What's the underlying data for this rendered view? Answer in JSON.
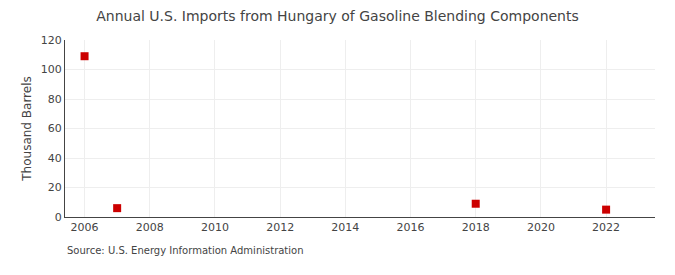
{
  "chart_data": {
    "type": "scatter",
    "title": "Annual U.S. Imports from Hungary of Gasoline Blending Components",
    "ylabel": "Thousand Barrels",
    "source": "Source: U.S. Energy Information Administration",
    "x": [
      2006,
      2007,
      2018,
      2022
    ],
    "values": [
      109,
      6,
      9,
      5
    ],
    "color": "#cc0000",
    "marker": "square",
    "xlim": [
      2005.4,
      2023.5
    ],
    "xticks": [
      2006,
      2008,
      2010,
      2012,
      2014,
      2016,
      2018,
      2020,
      2022
    ],
    "ylim": [
      0,
      120
    ],
    "yticks": [
      0,
      20,
      40,
      60,
      80,
      100,
      120
    ],
    "grid": true
  }
}
